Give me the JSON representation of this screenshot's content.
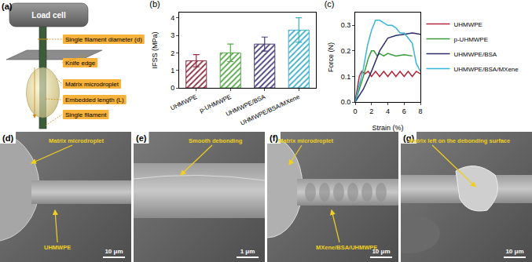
{
  "panel_a": {
    "title": "(a)",
    "load_cell": "Load cell",
    "labels": [
      "Single filament diameter (d)",
      "Knife edge",
      "Matrix microdroplet",
      "Embedded length (L)",
      "Single filament"
    ]
  },
  "chart_data": [
    {
      "type": "bar",
      "title": "(b)",
      "y_label": "IFSS (MPa)",
      "categories": [
        "UHMWPE",
        "p-UHMWPE",
        "UHMWPE/BSA",
        "UHMWPE/BSA/MXene"
      ],
      "values": [
        1.55,
        2.0,
        2.5,
        3.3
      ],
      "errors": [
        0.35,
        0.5,
        0.4,
        0.7
      ],
      "colors": [
        "#8e3042",
        "#58a84a",
        "#4a3f78",
        "#3fb0c8"
      ],
      "marker": "hatch",
      "ylim": [
        0,
        4.3
      ],
      "yticks": [
        0,
        1,
        2,
        3,
        4
      ]
    },
    {
      "type": "line",
      "title": "(c)",
      "x_label": "Strain (%)",
      "y_label": "Force (N)",
      "xlim": [
        0,
        8
      ],
      "xticks": [
        0,
        2,
        4,
        6,
        8
      ],
      "ylim": [
        0,
        0.35
      ],
      "yticks": [
        {
          "value": 0,
          "label": "0.0"
        },
        {
          "value": 0.1,
          "label": "0.1"
        },
        {
          "value": 0.2,
          "label": "0.2"
        },
        {
          "value": 0.3,
          "label": "0.3"
        }
      ],
      "legend": "right",
      "series": [
        {
          "name": "UHMWPE",
          "color": "#b0283a",
          "x": [
            0,
            0.5,
            0.8,
            1.2,
            1.6,
            2,
            2.5,
            3,
            3.5,
            4,
            4.5,
            5,
            5.5,
            6,
            6.5,
            7,
            7.5,
            8
          ],
          "values": [
            0,
            0.1,
            0.12,
            0.11,
            0.12,
            0.1,
            0.12,
            0.1,
            0.12,
            0.1,
            0.12,
            0.1,
            0.12,
            0.1,
            0.12,
            0.1,
            0.12,
            0.11
          ]
        },
        {
          "name": "p-UHMWPE",
          "color": "#3a9a3a",
          "x": [
            0,
            1,
            1.6,
            2,
            2.3,
            2.7,
            3,
            3.5,
            4,
            5,
            6,
            7
          ],
          "values": [
            0,
            0.1,
            0.17,
            0.2,
            0.2,
            0.18,
            0.19,
            0.18,
            0.19,
            0.18,
            0.185,
            0.18
          ]
        },
        {
          "name": "UHMWPE/BSA",
          "color": "#2c2c6e",
          "x": [
            0,
            1,
            2,
            3,
            4,
            5,
            6,
            7,
            8
          ],
          "values": [
            0,
            0.05,
            0.12,
            0.2,
            0.25,
            0.26,
            0.265,
            0.27,
            0.265
          ]
        },
        {
          "name": "UHMWPE/BSA/MXene",
          "color": "#38b6d6",
          "x": [
            0,
            1,
            1.5,
            2,
            2.5,
            3,
            3.5,
            4,
            4.5,
            5,
            5.5,
            6,
            6.5,
            7,
            7.5,
            8
          ],
          "values": [
            0,
            0.13,
            0.22,
            0.28,
            0.32,
            0.32,
            0.31,
            0.3,
            0.3,
            0.29,
            0.27,
            0.27,
            0.25,
            0.23,
            0.15,
            0.12
          ]
        }
      ]
    }
  ],
  "images": [
    {
      "title": "(d)",
      "annotations": [
        "Matrix microdroplet",
        "UHMWPE"
      ],
      "scale_bar": "10 μm"
    },
    {
      "title": "(e)",
      "annotations": [
        "Smooth debonding"
      ],
      "scale_bar": "1 μm"
    },
    {
      "title": "(f)",
      "annotations": [
        "Matrix microdroplet",
        "MXene/BSA/UHMWPE"
      ],
      "scale_bar": "10 μm"
    },
    {
      "title": "(g)",
      "annotations": [
        "Matrix left on the debonding surface"
      ],
      "scale_bar": "10 μm"
    }
  ]
}
